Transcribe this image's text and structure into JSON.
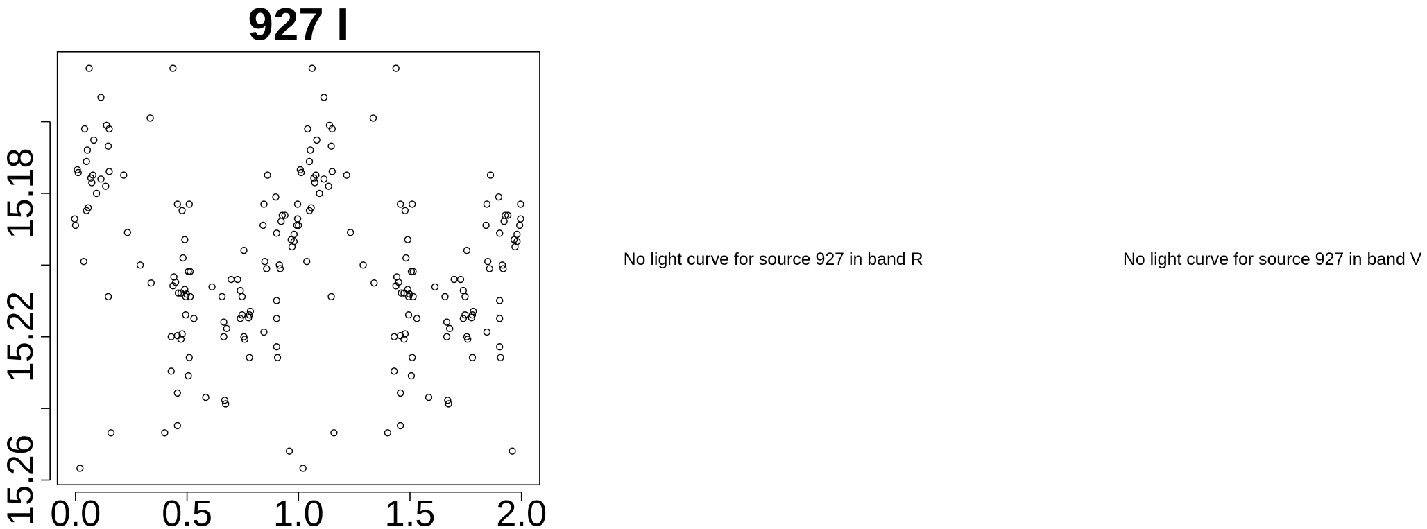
{
  "chart_data": {
    "type": "scatter",
    "title": "927 I",
    "annotations": [
      "No light curve for source 927 in band R",
      "No light curve for source 927 in band V"
    ],
    "xlim": [
      -0.0816,
      2.0816
    ],
    "ylim": [
      15.2613,
      15.1405
    ],
    "xticks": [
      {
        "value": 0,
        "label": "0.0"
      },
      0.5,
      {
        "value": 1,
        "label": "1.0"
      },
      1.5,
      {
        "value": 2,
        "label": "2.0"
      }
    ],
    "yticks": [
      {
        "value": 15.16,
        "label": null
      },
      15.18,
      {
        "value": 15.2,
        "label": null
      },
      15.22,
      {
        "value": 15.24,
        "label": null
      },
      15.26
    ],
    "color": "#000000",
    "x": [
      0.061,
      0.008,
      0.012,
      0.041,
      0.053,
      0.049,
      0.082,
      0.069,
      0.073,
      0.078,
      0.094,
      0.114,
      0.114,
      0.139,
      0.151,
      0.147,
      0.135,
      0.151,
      0.057,
      0.049,
      -0.004,
      0.0,
      0.037,
      0.147,
      0.159,
      0.02,
      0.216,
      0.233,
      0.29,
      0.335,
      0.339,
      0.4,
      0.437,
      0.429,
      0.429,
      0.437,
      0.441,
      0.449,
      0.457,
      0.457,
      0.457,
      0.461,
      0.473,
      0.478,
      0.482,
      0.49,
      0.49,
      0.494,
      0.494,
      0.498,
      0.506,
      0.506,
      0.51,
      0.514,
      0.514,
      0.51,
      0.531,
      0.457,
      0.473,
      0.478,
      0.584,
      0.612,
      0.657,
      0.665,
      0.665,
      0.669,
      0.673,
      0.678,
      0.698,
      0.727,
      0.739,
      0.747,
      0.747,
      0.755,
      0.755,
      0.759,
      0.776,
      0.78,
      0.784,
      0.78,
      0.739,
      0.845,
      0.845,
      0.841,
      0.849,
      0.861,
      0.857,
      0.898,
      0.902,
      0.902,
      0.902,
      0.902,
      0.906,
      0.914,
      0.918,
      0.922,
      0.927,
      0.939,
      0.967,
      0.971,
      0.98,
      0.98,
      0.996,
      0.996,
      0.992,
      0.959,
      1.061,
      1.008,
      1.012,
      1.041,
      1.053,
      1.049,
      1.082,
      1.069,
      1.073,
      1.078,
      1.094,
      1.114,
      1.114,
      1.139,
      1.151,
      1.147,
      1.135,
      1.151,
      1.057,
      1.049,
      0.996,
      1.0,
      1.037,
      1.147,
      1.159,
      1.02,
      1.216,
      1.233,
      1.29,
      1.335,
      1.339,
      1.4,
      1.437,
      1.429,
      1.429,
      1.437,
      1.441,
      1.449,
      1.457,
      1.457,
      1.457,
      1.461,
      1.473,
      1.478,
      1.482,
      1.49,
      1.49,
      1.494,
      1.494,
      1.498,
      1.506,
      1.506,
      1.51,
      1.514,
      1.514,
      1.51,
      1.531,
      1.457,
      1.473,
      1.478,
      1.584,
      1.612,
      1.657,
      1.665,
      1.665,
      1.669,
      1.673,
      1.678,
      1.698,
      1.727,
      1.739,
      1.747,
      1.747,
      1.755,
      1.755,
      1.759,
      1.776,
      1.78,
      1.784,
      1.78,
      1.739,
      1.845,
      1.845,
      1.841,
      1.849,
      1.861,
      1.857,
      1.898,
      1.902,
      1.902,
      1.902,
      1.902,
      1.906,
      1.914,
      1.918,
      1.922,
      1.927,
      1.939,
      1.967,
      1.971,
      1.98,
      1.98,
      1.996,
      1.996,
      1.992,
      1.959
    ],
    "values": [
      15.1451,
      15.1734,
      15.1742,
      15.162,
      15.1679,
      15.1711,
      15.1651,
      15.1757,
      15.177,
      15.1749,
      15.18,
      15.1532,
      15.176,
      15.161,
      15.162,
      15.1668,
      15.178,
      15.1739,
      15.184,
      15.1848,
      15.1871,
      15.1889,
      15.199,
      15.2088,
      15.2468,
      15.2567,
      15.1749,
      15.1909,
      15.2,
      15.159,
      15.205,
      15.2468,
      15.1451,
      15.22,
      15.2296,
      15.2058,
      15.2033,
      15.2048,
      15.183,
      15.2197,
      15.2357,
      15.2078,
      15.2078,
      15.1848,
      15.198,
      15.2068,
      15.1929,
      15.2088,
      15.2139,
      15.2081,
      15.2018,
      15.2309,
      15.183,
      15.2088,
      15.2018,
      15.2258,
      15.2149,
      15.2448,
      15.2207,
      15.2192,
      15.2369,
      15.2061,
      15.2088,
      15.2159,
      15.22,
      15.2377,
      15.2387,
      15.2177,
      15.204,
      15.204,
      15.2071,
      15.2088,
      15.2139,
      15.22,
      15.1959,
      15.2207,
      15.2147,
      15.2139,
      15.2129,
      15.2258,
      15.2149,
      15.2187,
      15.183,
      15.1889,
      15.199,
      15.1749,
      15.201,
      15.181,
      15.1911,
      15.2099,
      15.2149,
      15.2228,
      15.2258,
      15.2,
      15.201,
      15.1878,
      15.1861,
      15.1861,
      15.1929,
      15.1949,
      15.1914,
      15.1934,
      15.183,
      15.1871,
      15.1889,
      15.2519,
      15.1451,
      15.1734,
      15.1742,
      15.162,
      15.1679,
      15.1711,
      15.1651,
      15.1757,
      15.177,
      15.1749,
      15.18,
      15.1532,
      15.176,
      15.161,
      15.162,
      15.1668,
      15.178,
      15.1739,
      15.184,
      15.1848,
      15.1871,
      15.1889,
      15.199,
      15.2088,
      15.2468,
      15.2567,
      15.1749,
      15.1909,
      15.2,
      15.159,
      15.205,
      15.2468,
      15.1451,
      15.22,
      15.2296,
      15.2058,
      15.2033,
      15.2048,
      15.183,
      15.2197,
      15.2357,
      15.2078,
      15.2078,
      15.1848,
      15.198,
      15.2068,
      15.1929,
      15.2088,
      15.2139,
      15.2081,
      15.2018,
      15.2309,
      15.183,
      15.2088,
      15.2018,
      15.2258,
      15.2149,
      15.2448,
      15.2207,
      15.2192,
      15.2369,
      15.2061,
      15.2088,
      15.2159,
      15.22,
      15.2377,
      15.2387,
      15.2177,
      15.204,
      15.204,
      15.2071,
      15.2088,
      15.2139,
      15.22,
      15.1959,
      15.2207,
      15.2147,
      15.2139,
      15.2129,
      15.2258,
      15.2149,
      15.2187,
      15.183,
      15.1889,
      15.199,
      15.1749,
      15.201,
      15.181,
      15.1911,
      15.2099,
      15.2149,
      15.2228,
      15.2258,
      15.2,
      15.201,
      15.1878,
      15.1861,
      15.1861,
      15.1929,
      15.1949,
      15.1914,
      15.1934,
      15.183,
      15.1871,
      15.1889,
      15.2519
    ]
  }
}
